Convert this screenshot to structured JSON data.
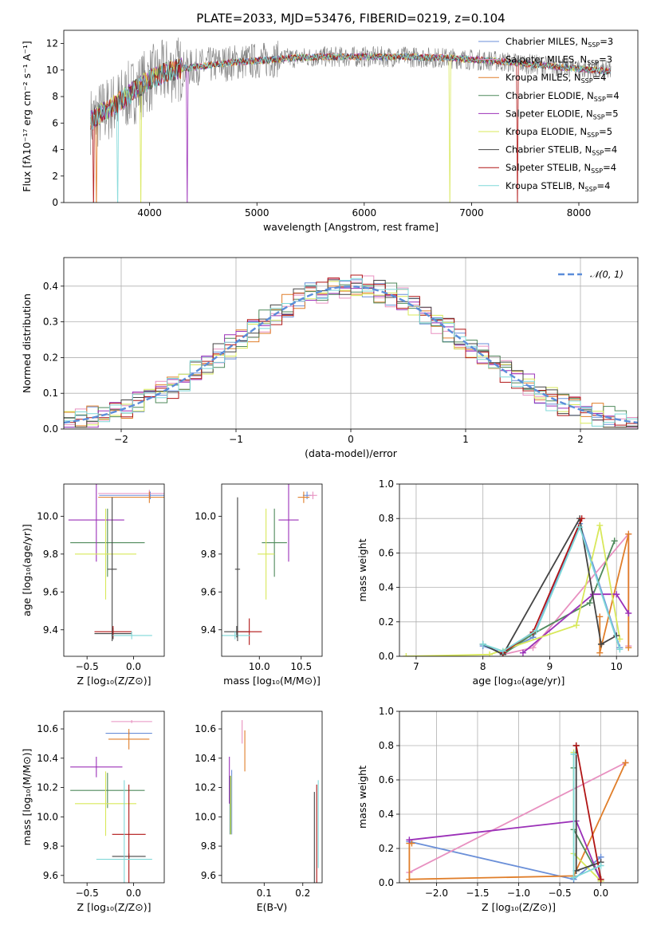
{
  "title": "PLATE=2033, MJD=53476, FIBERID=0219, z=0.104",
  "models": [
    {
      "name": "Chabrier MILES",
      "nssp": "3",
      "color": "#6a8fd8"
    },
    {
      "name": "Salpeter MILES",
      "nssp": "3",
      "color": "#e890c0"
    },
    {
      "name": "Kroupa MILES",
      "nssp": "4",
      "color": "#e07e2a"
    },
    {
      "name": "Chabrier ELODIE",
      "nssp": "4",
      "color": "#4f8a5b"
    },
    {
      "name": "Salpeter ELODIE",
      "nssp": "5",
      "color": "#9b30b8"
    },
    {
      "name": "Kroupa ELODIE",
      "nssp": "5",
      "color": "#d8e85a"
    },
    {
      "name": "Chabrier STELIB",
      "nssp": "4",
      "color": "#444444"
    },
    {
      "name": "Salpeter STELIB",
      "nssp": "4",
      "color": "#b01414"
    },
    {
      "name": "Kroupa STELIB",
      "nssp": "4",
      "color": "#7fd8d8"
    }
  ],
  "legend_nssp_prefix": "N",
  "legend_nssp_sub": "SSP",
  "chart_data": [
    {
      "id": "spectrum",
      "type": "line",
      "xlabel": "wavelength [Angstrom, rest frame]",
      "ylabel": "Flux [fλ10⁻¹⁷ erg cm⁻² s⁻¹ A⁻¹]",
      "xlim": [
        3200,
        8550
      ],
      "ylim": [
        0,
        13
      ],
      "xticks": [
        4000,
        5000,
        6000,
        7000,
        8000
      ],
      "yticks": [
        0,
        2,
        4,
        6,
        8,
        10,
        12
      ],
      "data_color": "#808080",
      "shape": {
        "x": [
          3450,
          3700,
          4000,
          4200,
          4500,
          4800,
          5000,
          5300,
          5600,
          6000,
          6400,
          6800,
          7200,
          7600,
          8000,
          8300
        ],
        "y": [
          6.2,
          7.5,
          9.3,
          10.0,
          10.3,
          10.6,
          10.7,
          10.9,
          11.0,
          11.0,
          11.0,
          10.9,
          10.7,
          10.4,
          10.1,
          9.9
        ]
      }
    },
    {
      "id": "residuals",
      "type": "histogram",
      "xlabel": "(data-model)/error",
      "ylabel": "Normed distribution",
      "xlim": [
        -2.5,
        2.5
      ],
      "ylim": [
        0,
        0.48
      ],
      "xticks": [
        -2,
        -1,
        0,
        1,
        2
      ],
      "yticks": [
        0.0,
        0.1,
        0.2,
        0.3,
        0.4
      ],
      "reference_label": "𝒩(0, 1)",
      "reference_color": "#5b8dd9",
      "bin_width": 0.1
    },
    {
      "id": "age_vs_Z",
      "type": "errorbar",
      "xlabel": "Z [log₁₀(Z/Z⊙)]",
      "ylabel": "age  [log₁₀(age/yr)]",
      "xlim": [
        -0.75,
        0.33
      ],
      "ylim": [
        9.26,
        10.17
      ],
      "xticks": [
        -0.5,
        0.0
      ],
      "yticks": [
        9.4,
        9.6,
        9.8,
        10.0
      ],
      "points": [
        {
          "m": 0,
          "x": 0.18,
          "y": 10.11,
          "xe": 0.55,
          "ye": 0.02
        },
        {
          "m": 1,
          "x": 0.17,
          "y": 10.12,
          "xe": 0.55,
          "ye": 0.02
        },
        {
          "m": 2,
          "x": 0.17,
          "y": 10.1,
          "xe": 0.55,
          "ye": 0.03
        },
        {
          "m": 3,
          "x": -0.28,
          "y": 9.86,
          "xe": 0.4,
          "ye": 0.18
        },
        {
          "m": 4,
          "x": -0.4,
          "y": 9.98,
          "xe": 0.3,
          "ye": 0.22
        },
        {
          "m": 5,
          "x": -0.3,
          "y": 9.8,
          "xe": 0.33,
          "ye": 0.24
        },
        {
          "m": 6,
          "x": -0.22,
          "y": 9.38,
          "xe": 0.2,
          "ye": 0.03
        },
        {
          "m": 7,
          "x": -0.22,
          "y": 9.39,
          "xe": 0.2,
          "ye": 0.03
        },
        {
          "m": 8,
          "x": -0.02,
          "y": 9.37,
          "xe": 0.22,
          "ye": 0.02
        },
        {
          "m": 6,
          "x": -0.23,
          "y": 9.72,
          "xe": 0.05,
          "ye": 0.38
        }
      ]
    },
    {
      "id": "age_vs_mass",
      "type": "errorbar",
      "xlabel": "mass [log₁₀(M/M⊙)]",
      "ylabel": "",
      "xlim": [
        9.55,
        10.75
      ],
      "ylim": [
        9.26,
        10.17
      ],
      "xticks": [
        10.0,
        10.5
      ],
      "yticks": [
        9.4,
        9.6,
        9.8,
        10.0
      ],
      "points": [
        {
          "m": 0,
          "x": 10.57,
          "y": 10.11,
          "xe": 0.05,
          "ye": 0.02
        },
        {
          "m": 1,
          "x": 10.64,
          "y": 10.11,
          "xe": 0.05,
          "ye": 0.02
        },
        {
          "m": 2,
          "x": 10.53,
          "y": 10.1,
          "xe": 0.07,
          "ye": 0.03
        },
        {
          "m": 3,
          "x": 10.18,
          "y": 9.86,
          "xe": 0.15,
          "ye": 0.18
        },
        {
          "m": 4,
          "x": 10.35,
          "y": 9.98,
          "xe": 0.12,
          "ye": 0.22
        },
        {
          "m": 5,
          "x": 10.08,
          "y": 9.8,
          "xe": 0.1,
          "ye": 0.24
        },
        {
          "m": 6,
          "x": 9.73,
          "y": 9.39,
          "xe": 0.15,
          "ye": 0.03
        },
        {
          "m": 7,
          "x": 9.88,
          "y": 9.39,
          "xe": 0.15,
          "ye": 0.07
        },
        {
          "m": 8,
          "x": 9.71,
          "y": 9.37,
          "xe": 0.18,
          "ye": 0.02
        },
        {
          "m": 6,
          "x": 9.74,
          "y": 9.72,
          "xe": 0.03,
          "ye": 0.38
        }
      ]
    },
    {
      "id": "weight_vs_age",
      "type": "line",
      "xlabel": "age  [log₁₀(age/yr)]",
      "ylabel": "mass weight",
      "xlim": [
        6.75,
        10.32
      ],
      "ylim": [
        0,
        1
      ],
      "xticks": [
        7,
        8,
        9,
        10
      ],
      "yticks": [
        0.0,
        0.2,
        0.4,
        0.6,
        0.8,
        1.0
      ],
      "series": [
        {
          "m": 0,
          "x": [
            8.0,
            8.3,
            8.75,
            9.45,
            10.05
          ],
          "y": [
            0.06,
            0.02,
            0.11,
            0.77,
            0.05
          ]
        },
        {
          "m": 1,
          "x": [
            8.3,
            8.75,
            10.18,
            10.18
          ],
          "y": [
            0.01,
            0.05,
            0.71,
            0.06
          ]
        },
        {
          "m": 2,
          "x": [
            9.75,
            9.75,
            10.18,
            10.18
          ],
          "y": [
            0.23,
            0.02,
            0.71,
            0.05
          ]
        },
        {
          "m": 3,
          "x": [
            8.3,
            8.75,
            9.6,
            9.97
          ],
          "y": [
            0.01,
            0.13,
            0.31,
            0.67
          ]
        },
        {
          "m": 4,
          "x": [
            8.6,
            9.65,
            10.0,
            10.18
          ],
          "y": [
            0.02,
            0.36,
            0.36,
            0.25
          ]
        },
        {
          "m": 5,
          "x": [
            6.85,
            8.1,
            9.4,
            9.75,
            10.05
          ],
          "y": [
            0.0,
            0.01,
            0.18,
            0.76,
            0.1
          ]
        },
        {
          "m": 6,
          "x": [
            8.0,
            8.3,
            9.45,
            9.77,
            10.0
          ],
          "y": [
            0.07,
            0.01,
            0.8,
            0.07,
            0.12
          ]
        },
        {
          "m": 7,
          "x": [
            8.3,
            8.75,
            9.48
          ],
          "y": [
            0.02,
            0.14,
            0.8
          ]
        },
        {
          "m": 8,
          "x": [
            8.0,
            8.3,
            8.8,
            9.45,
            10.05
          ],
          "y": [
            0.07,
            0.03,
            0.15,
            0.75,
            0.04
          ]
        }
      ]
    },
    {
      "id": "mass_vs_Z",
      "type": "errorbar",
      "xlabel": "Z [log₁₀(Z/Z⊙)]",
      "ylabel": "mass [log₁₀(M/M⊙)]",
      "xlim": [
        -0.75,
        0.33
      ],
      "ylim": [
        9.55,
        10.72
      ],
      "xticks": [
        -0.5,
        0.0
      ],
      "yticks": [
        9.6,
        9.8,
        10.0,
        10.2,
        10.4,
        10.6
      ],
      "points": [
        {
          "m": 0,
          "x": -0.05,
          "y": 10.57,
          "xe": 0.25,
          "ye": 0.01
        },
        {
          "m": 1,
          "x": -0.02,
          "y": 10.65,
          "xe": 0.22,
          "ye": 0.01
        },
        {
          "m": 2,
          "x": -0.05,
          "y": 10.53,
          "xe": 0.22,
          "ye": 0.07
        },
        {
          "m": 3,
          "x": -0.28,
          "y": 10.18,
          "xe": 0.4,
          "ye": 0.12
        },
        {
          "m": 4,
          "x": -0.4,
          "y": 10.34,
          "xe": 0.28,
          "ye": 0.07
        },
        {
          "m": 5,
          "x": -0.3,
          "y": 10.09,
          "xe": 0.33,
          "ye": 0.22
        },
        {
          "m": 6,
          "x": -0.05,
          "y": 9.73,
          "xe": 0.18,
          "ye": 0.02
        },
        {
          "m": 7,
          "x": -0.05,
          "y": 9.88,
          "xe": 0.18,
          "ye": 0.34
        },
        {
          "m": 8,
          "x": -0.1,
          "y": 9.71,
          "xe": 0.3,
          "ye": 0.54
        }
      ]
    },
    {
      "id": "mass_vs_ebv",
      "type": "errorbar",
      "xlabel": "E(B-V)",
      "ylabel": "",
      "xlim": [
        -0.01,
        0.25
      ],
      "ylim": [
        9.55,
        10.72
      ],
      "xticks": [
        0.1,
        0.2
      ],
      "yticks": [
        9.6,
        9.8,
        10.0,
        10.2,
        10.4,
        10.6
      ],
      "points": [
        {
          "m": 0,
          "x": 0.016,
          "y": 10.1,
          "xe": 0.0,
          "ye": 0.22
        },
        {
          "m": 1,
          "x": 0.043,
          "y": 10.58,
          "xe": 0.0,
          "ye": 0.08
        },
        {
          "m": 2,
          "x": 0.05,
          "y": 10.45,
          "xe": 0.0,
          "ye": 0.14
        },
        {
          "m": 3,
          "x": 0.012,
          "y": 10.08,
          "xe": 0.0,
          "ye": 0.2
        },
        {
          "m": 4,
          "x": 0.01,
          "y": 10.25,
          "xe": 0.0,
          "ye": 0.16
        },
        {
          "m": 5,
          "x": 0.014,
          "y": 10.08,
          "xe": 0.0,
          "ye": 0.2
        },
        {
          "m": 6,
          "x": 0.23,
          "y": 9.85,
          "xe": 0.0,
          "ye": 0.32
        },
        {
          "m": 7,
          "x": 0.236,
          "y": 9.88,
          "xe": 0.0,
          "ye": 0.34
        },
        {
          "m": 8,
          "x": 0.24,
          "y": 9.95,
          "xe": 0.0,
          "ye": 0.3
        }
      ]
    },
    {
      "id": "weight_vs_Z",
      "type": "line",
      "xlabel": "Z [log₁₀(Z/Z⊙)]",
      "ylabel": "mass weight",
      "xlim": [
        -2.45,
        0.45
      ],
      "ylim": [
        0,
        1
      ],
      "xticks": [
        -2.0,
        -1.5,
        -1.0,
        -0.5,
        0.0
      ],
      "yticks": [
        0.0,
        0.2,
        0.4,
        0.6,
        0.8,
        1.0
      ],
      "series": [
        {
          "m": 0,
          "x": [
            -2.33,
            -0.33,
            0.0
          ],
          "y": [
            0.24,
            0.02,
            0.15
          ]
        },
        {
          "m": 1,
          "x": [
            -2.33,
            0.3
          ],
          "y": [
            0.06,
            0.7
          ]
        },
        {
          "m": 2,
          "x": [
            -2.3,
            -2.33,
            -2.33,
            -0.33,
            0.3
          ],
          "y": [
            0.23,
            0.23,
            0.02,
            0.04,
            0.7
          ]
        },
        {
          "m": 3,
          "x": [
            -0.33,
            -0.33,
            0.0
          ],
          "y": [
            0.67,
            0.31,
            0.02
          ]
        },
        {
          "m": 4,
          "x": [
            -2.33,
            -0.3,
            0.0
          ],
          "y": [
            0.25,
            0.36,
            0.01
          ]
        },
        {
          "m": 5,
          "x": [
            -0.33,
            -0.33,
            0.0
          ],
          "y": [
            0.76,
            0.17,
            0.01
          ]
        },
        {
          "m": 6,
          "x": [
            -0.3,
            -0.3,
            0.0
          ],
          "y": [
            0.8,
            0.07,
            0.12
          ]
        },
        {
          "m": 7,
          "x": [
            -0.3,
            0.0
          ],
          "y": [
            0.8,
            0.02
          ]
        },
        {
          "m": 8,
          "x": [
            -0.33,
            -0.33,
            0.0
          ],
          "y": [
            0.75,
            0.03,
            0.1
          ]
        }
      ]
    }
  ]
}
